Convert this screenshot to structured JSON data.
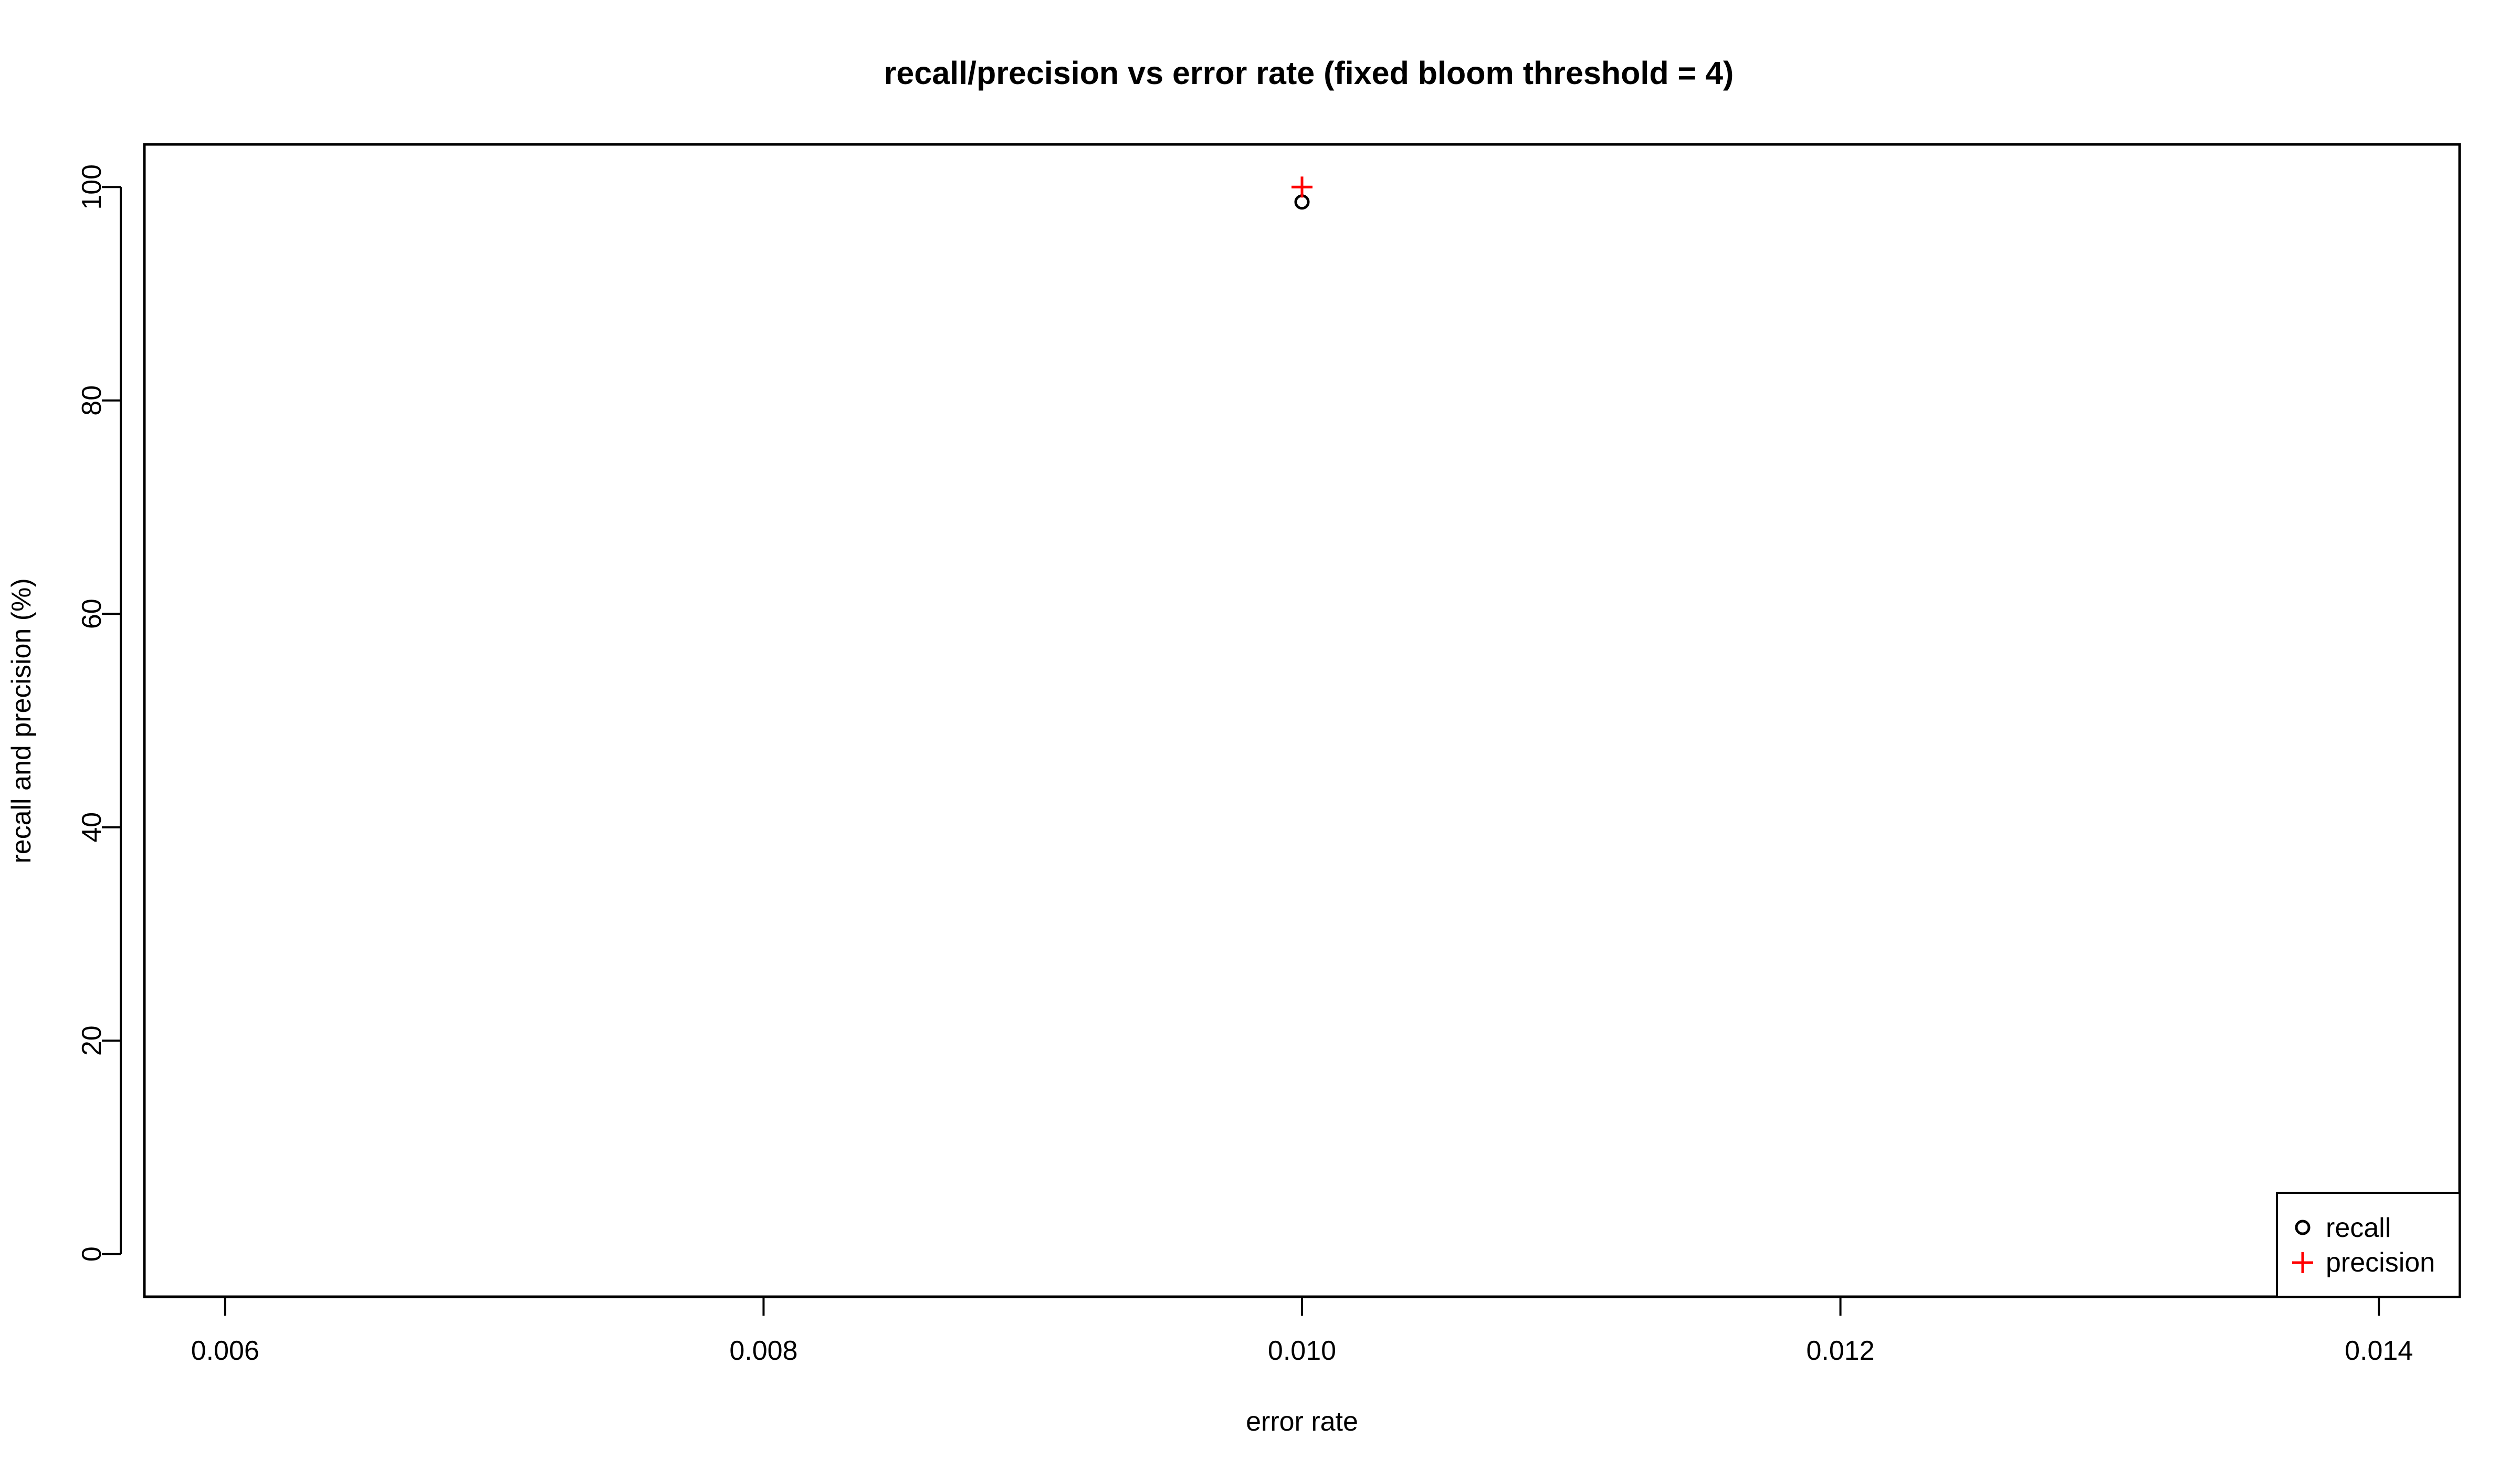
{
  "chart_data": {
    "type": "scatter",
    "title": "recall/precision vs error rate (fixed bloom threshold = 4)",
    "xlabel": "error rate",
    "ylabel": "recall and precision (%)",
    "xlim": [
      0.0057,
      0.0143
    ],
    "ylim": [
      -4,
      104
    ],
    "x_ticks": [
      "0.006",
      "0.008",
      "0.010",
      "0.012",
      "0.014"
    ],
    "y_ticks": [
      "0",
      "20",
      "40",
      "60",
      "80",
      "100"
    ],
    "grid": false,
    "legend_position": "bottom-right",
    "series": [
      {
        "name": "recall",
        "marker": "circle",
        "color": "#000000",
        "x": [
          0.01
        ],
        "y": [
          98.6
        ]
      },
      {
        "name": "precision",
        "marker": "plus",
        "color": "#ff0000",
        "x": [
          0.01
        ],
        "y": [
          100
        ]
      }
    ]
  }
}
